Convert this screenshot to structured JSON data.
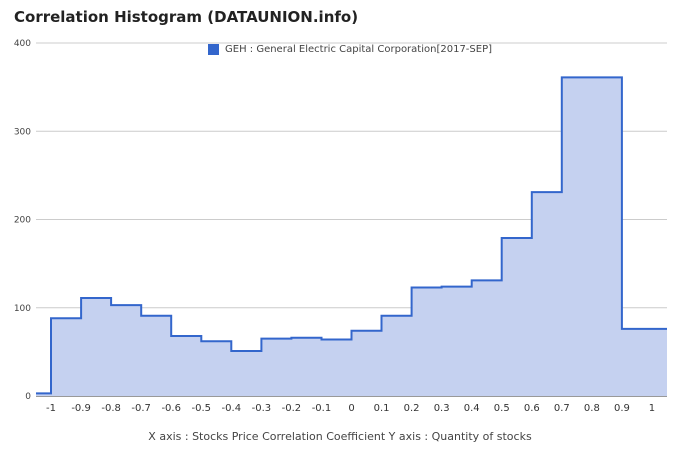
{
  "title": "Correlation Histogram (DATAUNION.info)",
  "caption": "X axis : Stocks Price Correlation Coefficient  Y axis : Quantity of stocks",
  "chart_data": {
    "type": "area",
    "step": true,
    "title": "Correlation Histogram (DATAUNION.info)",
    "series": [
      {
        "name": "GEH : General Electric Capital Corporation[2017-SEP]",
        "color": "#3366cc",
        "fill": "#c5d1f0",
        "x": [
          -1.05,
          -0.95,
          -0.85,
          -0.75,
          -0.65,
          -0.55,
          -0.45,
          -0.35,
          -0.25,
          -0.15,
          -0.05,
          0.05,
          0.15,
          0.25,
          0.35,
          0.45,
          0.55,
          0.65,
          0.75,
          0.85,
          0.95,
          1.05
        ],
        "values": [
          3,
          88,
          111,
          103,
          91,
          68,
          62,
          51,
          65,
          66,
          64,
          74,
          91,
          123,
          124,
          131,
          179,
          231,
          361,
          361,
          76,
          76
        ]
      }
    ],
    "xlim": [
      -1.05,
      1.05
    ],
    "ylim": [
      0,
      400
    ],
    "xticks": [
      "-1",
      "-0.9",
      "-0.8",
      "-0.7",
      "-0.6",
      "-0.5",
      "-0.4",
      "-0.3",
      "-0.2",
      "-0.1",
      "0",
      "0.1",
      "0.2",
      "0.3",
      "0.4",
      "0.5",
      "0.6",
      "0.7",
      "0.8",
      "0.9",
      "1"
    ],
    "yticks": [
      "0",
      "100",
      "200",
      "300",
      "400"
    ],
    "grid": true,
    "legend_position": "top"
  }
}
